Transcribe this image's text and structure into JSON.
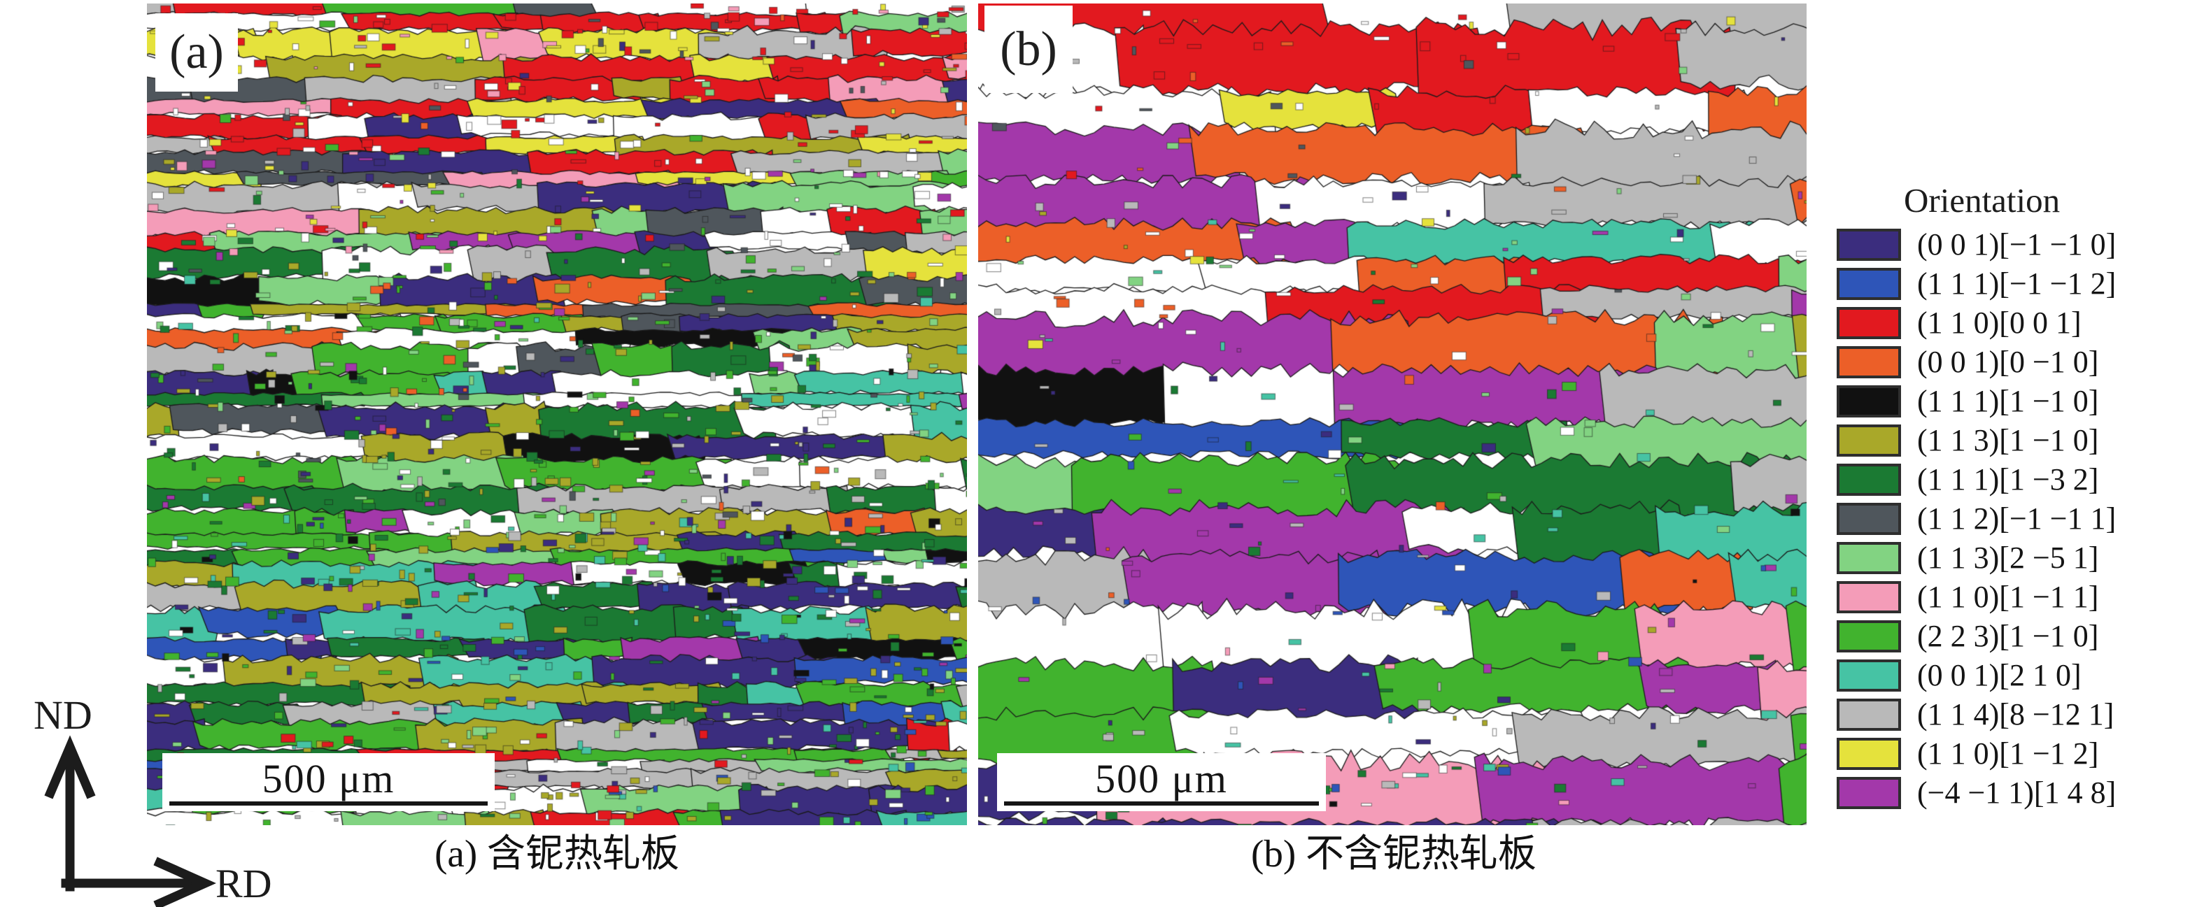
{
  "panels": [
    {
      "id": "a",
      "label": "(a)",
      "scale_bar_text": "500 μm",
      "caption": "(a) 含铌热轧板"
    },
    {
      "id": "b",
      "label": "(b)",
      "scale_bar_text": "500 μm",
      "caption": "(b) 不含铌热轧板"
    }
  ],
  "axes": {
    "vertical": "ND",
    "horizontal": "RD"
  },
  "legend": {
    "title": "Orientation",
    "entries": [
      {
        "color": "#3b2d7e",
        "label": "(0 0 1)[−1 −1 0]"
      },
      {
        "color": "#2e55b8",
        "label": "(1 1 1)[−1 −1 2]"
      },
      {
        "color": "#e2191f",
        "label": "(1 1 0)[0 0 1]"
      },
      {
        "color": "#ec5f28",
        "label": "(0 0 1)[0 −1 0]"
      },
      {
        "color": "#111111",
        "label": "(1 1 1)[1 −1 0]"
      },
      {
        "color": "#a9a829",
        "label": "(1 1 3)[1 −1 0]"
      },
      {
        "color": "#1b7a33",
        "label": "(1 1 1)[1 −3 2]"
      },
      {
        "color": "#4f565c",
        "label": "(1 1 2)[−1 −1 1]"
      },
      {
        "color": "#82d382",
        "label": "(1 1 3)[2 −5 1]"
      },
      {
        "color": "#f49cb8",
        "label": "(1 1 0)[1 −1 1]"
      },
      {
        "color": "#41b32e",
        "label": "(2 2 3)[1 −1 0]"
      },
      {
        "color": "#46c3a4",
        "label": "(0 0 1)[2 1 0]"
      },
      {
        "color": "#b9b9b9",
        "label": "(1 1 4)[8 −12 1]"
      },
      {
        "color": "#e5e23c",
        "label": "(1 1 0)[1 −1 2]"
      },
      {
        "color": "#a338aa",
        "label": "(−4 −1 1)[1 4 8]"
      }
    ],
    "map_background": "#ffffff"
  }
}
